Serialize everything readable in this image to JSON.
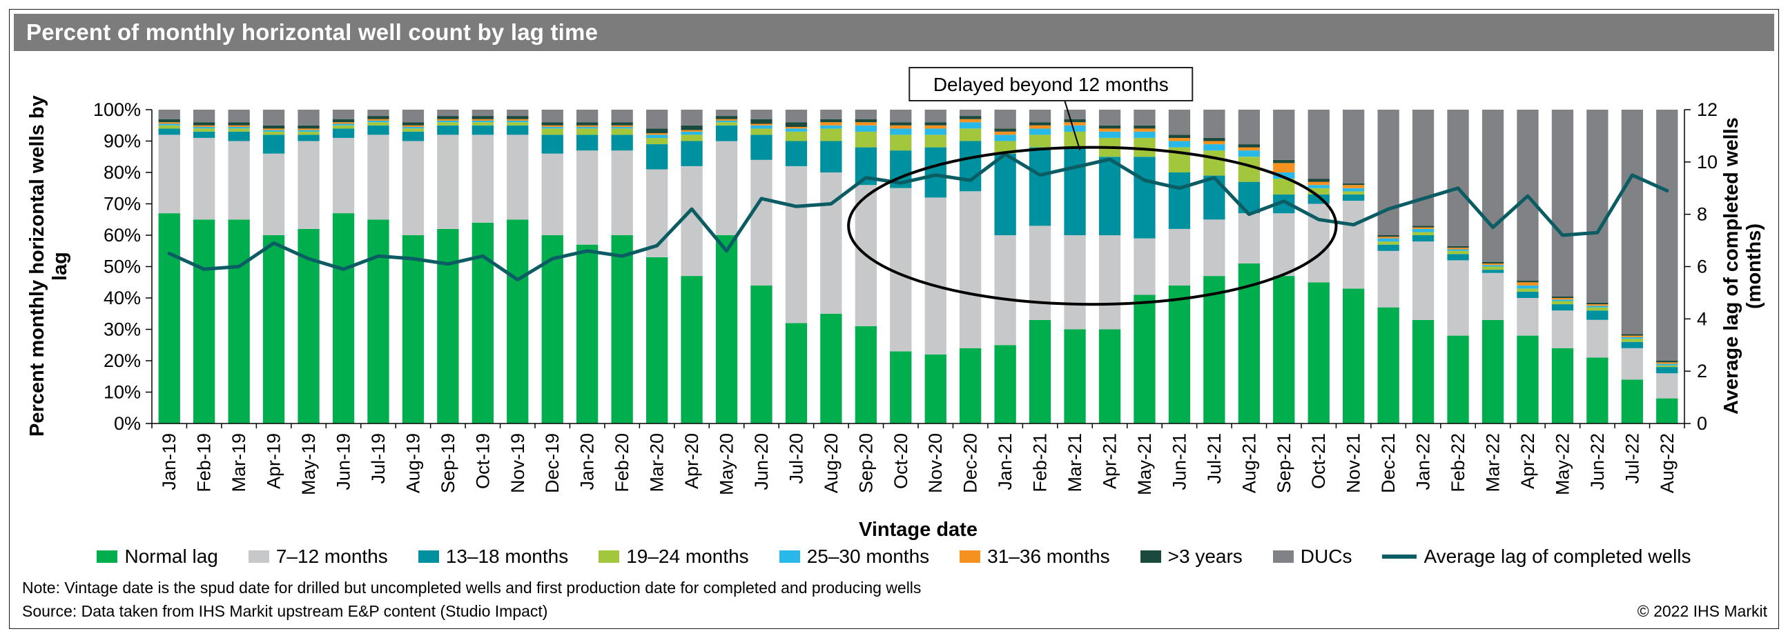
{
  "header": {
    "title": "Percent of monthly horizontal well count by lag time"
  },
  "chart_data": {
    "type": "bar",
    "stacked": true,
    "title": "Percent of monthly horizontal well count by lag time",
    "xlabel": "Vintage date",
    "ylabel_left": "Percent monthly horizontal wells by lag",
    "ylabel_right": "Average lag of completed wells (months)",
    "ylim_left": [
      0,
      100
    ],
    "ylim_right": [
      0,
      12
    ],
    "grid": false,
    "legend_position": "bottom",
    "ytick_values_left": [
      0,
      10,
      20,
      30,
      40,
      50,
      60,
      70,
      80,
      90,
      100
    ],
    "ytick_labels_left": [
      "0%",
      "10%",
      "20%",
      "30%",
      "40%",
      "50%",
      "60%",
      "70%",
      "80%",
      "90%",
      "100%"
    ],
    "ytick_values_right": [
      0,
      2,
      4,
      6,
      8,
      10,
      12
    ],
    "ytick_labels_right": [
      "0",
      "2",
      "4",
      "6",
      "8",
      "10",
      "12"
    ],
    "categories": [
      "Jan-19",
      "Feb-19",
      "Mar-19",
      "Apr-19",
      "May-19",
      "Jun-19",
      "Jul-19",
      "Aug-19",
      "Sep-19",
      "Oct-19",
      "Nov-19",
      "Dec-19",
      "Jan-20",
      "Feb-20",
      "Mar-20",
      "Apr-20",
      "May-20",
      "Jun-20",
      "Jul-20",
      "Aug-20",
      "Sep-20",
      "Oct-20",
      "Nov-20",
      "Dec-20",
      "Jan-21",
      "Feb-21",
      "Mar-21",
      "Apr-21",
      "May-21",
      "Jun-21",
      "Jul-21",
      "Aug-21",
      "Sep-21",
      "Oct-21",
      "Nov-21",
      "Dec-21",
      "Jan-22",
      "Feb-22",
      "Mar-22",
      "Apr-22",
      "May-22",
      "Jun-22",
      "Jul-22",
      "Aug-22"
    ],
    "series": [
      {
        "name": "Normal lag",
        "color": "#00ae4d",
        "values": [
          67,
          65,
          65,
          60,
          62,
          67,
          65,
          60,
          62,
          64,
          65,
          60,
          57,
          60,
          53,
          47,
          60,
          44,
          32,
          35,
          31,
          23,
          22,
          24,
          25,
          33,
          30,
          30,
          41,
          44,
          47,
          51,
          47,
          45,
          43,
          37,
          33,
          28,
          33,
          28,
          24,
          21,
          14,
          8
        ]
      },
      {
        "name": "7–12 months",
        "color": "#c7c8ca",
        "values": [
          25,
          26,
          25,
          26,
          28,
          24,
          27,
          30,
          30,
          28,
          27,
          26,
          30,
          27,
          28,
          35,
          30,
          40,
          50,
          45,
          45,
          52,
          50,
          50,
          35,
          30,
          30,
          30,
          18,
          18,
          18,
          16,
          20,
          25,
          28,
          18,
          25,
          24,
          15,
          12,
          12,
          12,
          10,
          8
        ]
      },
      {
        "name": "13–18 months",
        "color": "#0091a0",
        "values": [
          2,
          2,
          3,
          6,
          2,
          3,
          3,
          3,
          3,
          3,
          3,
          6,
          5,
          5,
          8,
          8,
          5,
          8,
          8,
          10,
          12,
          12,
          16,
          16,
          26,
          25,
          28,
          25,
          26,
          18,
          14,
          10,
          6,
          3,
          2,
          2,
          2,
          2,
          1,
          2,
          2,
          3,
          2,
          2
        ]
      },
      {
        "name": "19–24 months",
        "color": "#a2c63c",
        "values": [
          1,
          1,
          1,
          1,
          1,
          1,
          1,
          1,
          1,
          1,
          1,
          2,
          2,
          2,
          2,
          2,
          1,
          2,
          3,
          4,
          5,
          5,
          4,
          4,
          4,
          4,
          5,
          6,
          6,
          8,
          8,
          8,
          5,
          2,
          1,
          1,
          1,
          1,
          1,
          1,
          1,
          1,
          1,
          0.5
        ]
      },
      {
        "name": "25–30 months",
        "color": "#29b9e8",
        "values": [
          0.5,
          0.5,
          0.5,
          0.5,
          0.5,
          0.5,
          0.5,
          0.5,
          0.5,
          0.5,
          0.5,
          0.5,
          0.5,
          0.5,
          1,
          1,
          0.5,
          1,
          1,
          1,
          2,
          2,
          2,
          2,
          2,
          2,
          2,
          2,
          2,
          2,
          2,
          2,
          2,
          1,
          1,
          1,
          1,
          0.5,
          0.5,
          1,
          0.5,
          0.5,
          0.5,
          0.5
        ]
      },
      {
        "name": "31–36 months",
        "color": "#f5911e",
        "values": [
          0.5,
          0.5,
          0.5,
          0.5,
          0.5,
          0.5,
          0.5,
          0.5,
          0.5,
          0.5,
          0.5,
          0.5,
          0.5,
          0.5,
          0.5,
          0.5,
          0.5,
          0.5,
          0.5,
          1,
          1,
          1,
          1,
          1,
          1,
          1,
          1,
          1,
          1,
          1,
          1,
          1,
          3,
          1,
          1,
          0.5,
          0.5,
          0.5,
          0.5,
          1,
          0.5,
          0.5,
          0.5,
          0.5
        ]
      },
      {
        "name": ">3 years",
        "color": "#1a4a3e",
        "values": [
          1,
          1,
          1,
          1,
          1,
          1,
          1,
          1,
          1,
          1,
          1,
          1,
          1,
          1,
          1.5,
          1.5,
          1,
          1.5,
          1.5,
          1,
          1,
          1,
          1,
          1,
          1,
          1,
          1,
          1,
          1,
          1,
          1,
          1,
          1,
          1,
          0.5,
          0.5,
          0.5,
          0.5,
          0.5,
          0.5,
          0.5,
          0.5,
          0.5,
          0.5
        ]
      },
      {
        "name": "DUCs",
        "color": "#808285",
        "values": [
          3,
          4,
          4,
          5,
          5,
          3,
          2,
          4,
          2,
          2,
          2,
          4,
          4,
          4,
          6,
          5,
          2,
          3,
          4,
          3,
          3,
          4,
          4,
          2,
          6,
          4,
          3,
          5,
          5,
          8,
          9,
          11,
          16,
          22,
          23.5,
          40,
          37,
          43.5,
          48.5,
          54.5,
          59.5,
          61.5,
          71.5,
          80
        ]
      }
    ],
    "line_series": {
      "name": "Average lag of completed wells",
      "color": "#0b5d63",
      "values": [
        6.5,
        5.9,
        6.0,
        6.9,
        6.3,
        5.9,
        6.4,
        6.3,
        6.1,
        6.4,
        5.5,
        6.3,
        6.6,
        6.4,
        6.8,
        8.2,
        6.6,
        8.6,
        8.3,
        8.4,
        9.4,
        9.2,
        9.5,
        9.3,
        10.3,
        9.5,
        9.8,
        10.1,
        9.3,
        9.0,
        9.4,
        8.0,
        8.5,
        7.8,
        7.6,
        8.2,
        8.6,
        9.0,
        7.5,
        8.7,
        7.2,
        7.3,
        9.5,
        8.9
      ]
    },
    "annotation": {
      "label": "Delayed beyond 12 months",
      "ellipse_from": "Sep-20",
      "ellipse_to": "Oct-21",
      "ellipse_pct_range": [
        38,
        88
      ]
    }
  },
  "footer": {
    "note": "Note: Vintage date is the spud date for drilled but uncompleted wells and first production date for completed and producing wells",
    "source": "Source: Data taken from IHS Markit upstream E&P content (Studio Impact)",
    "copyright": "© 2022 IHS Markit"
  }
}
